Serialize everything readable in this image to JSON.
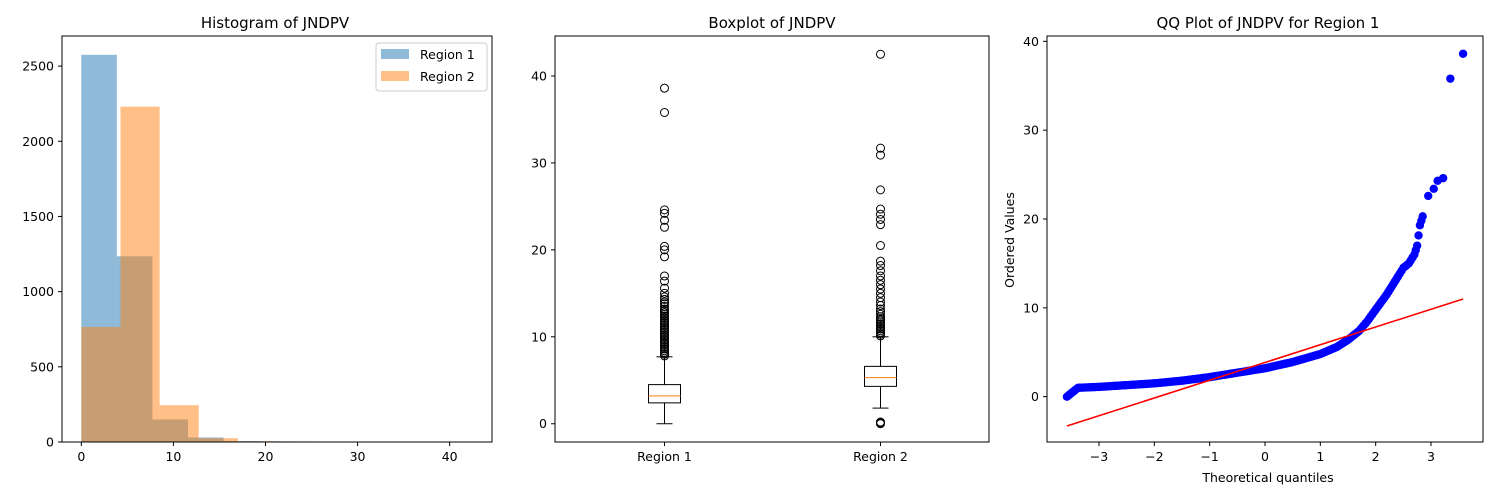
{
  "chart_data": [
    {
      "type": "histogram",
      "title": "Histogram of JNDPV",
      "xlabel": "",
      "ylabel": "",
      "xlim": [
        -2.1,
        44.6
      ],
      "ylim": [
        0,
        2700
      ],
      "xticks": [
        0,
        10,
        20,
        30,
        40
      ],
      "yticks": [
        0,
        500,
        1000,
        1500,
        2000,
        2500
      ],
      "legend_position": "top-right",
      "alpha": 0.5,
      "series": [
        {
          "name": "Region 1",
          "color": "#1f77b4",
          "bins": [
            {
              "x0": 0.0,
              "x1": 3.86,
              "count": 2575
            },
            {
              "x0": 3.86,
              "x1": 7.72,
              "count": 1235
            },
            {
              "x0": 7.72,
              "x1": 11.58,
              "count": 150
            },
            {
              "x0": 11.58,
              "x1": 15.44,
              "count": 30
            },
            {
              "x0": 15.44,
              "x1": 19.3,
              "count": 6
            },
            {
              "x0": 19.3,
              "x1": 23.16,
              "count": 4
            },
            {
              "x0": 23.16,
              "x1": 27.02,
              "count": 3
            },
            {
              "x0": 27.02,
              "x1": 30.88,
              "count": 0
            },
            {
              "x0": 30.88,
              "x1": 34.74,
              "count": 0
            },
            {
              "x0": 34.74,
              "x1": 38.6,
              "count": 2
            }
          ]
        },
        {
          "name": "Region 2",
          "color": "#ff7f0e",
          "bins": [
            {
              "x0": 0.0,
              "x1": 4.25,
              "count": 765
            },
            {
              "x0": 4.25,
              "x1": 8.5,
              "count": 2230
            },
            {
              "x0": 8.5,
              "x1": 12.75,
              "count": 245
            },
            {
              "x0": 12.75,
              "x1": 17.0,
              "count": 25
            },
            {
              "x0": 17.0,
              "x1": 21.25,
              "count": 5
            },
            {
              "x0": 21.25,
              "x1": 25.5,
              "count": 4
            },
            {
              "x0": 25.5,
              "x1": 29.75,
              "count": 1
            },
            {
              "x0": 29.75,
              "x1": 34.0,
              "count": 2
            },
            {
              "x0": 34.0,
              "x1": 38.25,
              "count": 0
            },
            {
              "x0": 38.25,
              "x1": 42.5,
              "count": 1
            }
          ]
        }
      ]
    },
    {
      "type": "box",
      "title": "Boxplot of JNDPV",
      "xlabel": "",
      "ylabel": "",
      "ylim": [
        -2.1,
        44.6
      ],
      "yticks": [
        0,
        10,
        20,
        30,
        40
      ],
      "categories": [
        "Region 1",
        "Region 2"
      ],
      "boxes": [
        {
          "name": "Region 1",
          "whisker_low": 0.0,
          "q1": 2.4,
          "median": 3.2,
          "q3": 4.5,
          "whisker_high": 7.7,
          "outliers": [
            7.8,
            8.0,
            8.2,
            8.4,
            8.6,
            8.8,
            9.0,
            9.2,
            9.4,
            9.6,
            9.8,
            10.0,
            10.2,
            10.4,
            10.6,
            10.8,
            11.0,
            11.2,
            11.4,
            11.6,
            11.8,
            12.0,
            12.2,
            12.4,
            12.6,
            12.8,
            13.0,
            13.2,
            13.5,
            13.8,
            14.0,
            14.3,
            14.6,
            15.0,
            15.6,
            16.4,
            17.0,
            19.2,
            20.0,
            20.4,
            22.6,
            23.4,
            24.2,
            24.6,
            35.8,
            38.6
          ]
        },
        {
          "name": "Region 2",
          "whisker_low": 1.8,
          "q1": 4.3,
          "median": 5.3,
          "q3": 6.6,
          "whisker_high": 10.0,
          "outliers": [
            0.0,
            0.1,
            0.2,
            10.1,
            10.3,
            10.5,
            10.7,
            10.9,
            11.1,
            11.3,
            11.5,
            11.7,
            11.9,
            12.1,
            12.3,
            12.6,
            12.9,
            13.2,
            13.6,
            14.0,
            14.5,
            15.0,
            15.5,
            16.0,
            16.5,
            17.0,
            17.6,
            18.2,
            18.7,
            20.5,
            22.9,
            23.5,
            24.1,
            24.7,
            26.9,
            30.9,
            31.7,
            42.5
          ]
        }
      ]
    },
    {
      "type": "scatter",
      "title": "QQ Plot of JNDPV for Region 1",
      "xlabel": "Theoretical quantiles",
      "ylabel": "Ordered Values",
      "xlim": [
        -3.94,
        3.94
      ],
      "ylim": [
        -5.1,
        40.6
      ],
      "xticks": [
        -3,
        -2,
        -1,
        0,
        1,
        2,
        3
      ],
      "yticks": [
        0,
        10,
        20,
        30,
        40
      ],
      "points_color": "#0000ff",
      "fit_line": {
        "color": "#ff0000",
        "x": [
          -3.58,
          3.58
        ],
        "y": [
          -3.3,
          11.0
        ]
      },
      "curve_anchors": [
        [
          -3.58,
          0.0
        ],
        [
          -3.38,
          1.0
        ],
        [
          -3.0,
          1.1
        ],
        [
          -2.5,
          1.3
        ],
        [
          -2.0,
          1.5
        ],
        [
          -1.5,
          1.8
        ],
        [
          -1.0,
          2.2
        ],
        [
          -0.5,
          2.7
        ],
        [
          0.0,
          3.2
        ],
        [
          0.5,
          3.9
        ],
        [
          1.0,
          4.8
        ],
        [
          1.3,
          5.6
        ],
        [
          1.5,
          6.4
        ],
        [
          1.7,
          7.4
        ],
        [
          1.85,
          8.5
        ],
        [
          2.0,
          9.8
        ],
        [
          2.2,
          11.5
        ],
        [
          2.4,
          13.5
        ],
        [
          2.5,
          14.5
        ],
        [
          2.6,
          15.0
        ],
        [
          2.7,
          16.0
        ],
        [
          2.75,
          17.0
        ],
        [
          2.8,
          19.3
        ],
        [
          2.85,
          20.3
        ]
      ],
      "tail_points": [
        [
          2.95,
          22.6
        ],
        [
          3.05,
          23.4
        ],
        [
          3.12,
          24.3
        ],
        [
          3.22,
          24.6
        ],
        [
          3.35,
          35.8
        ],
        [
          3.58,
          38.6
        ]
      ]
    }
  ]
}
